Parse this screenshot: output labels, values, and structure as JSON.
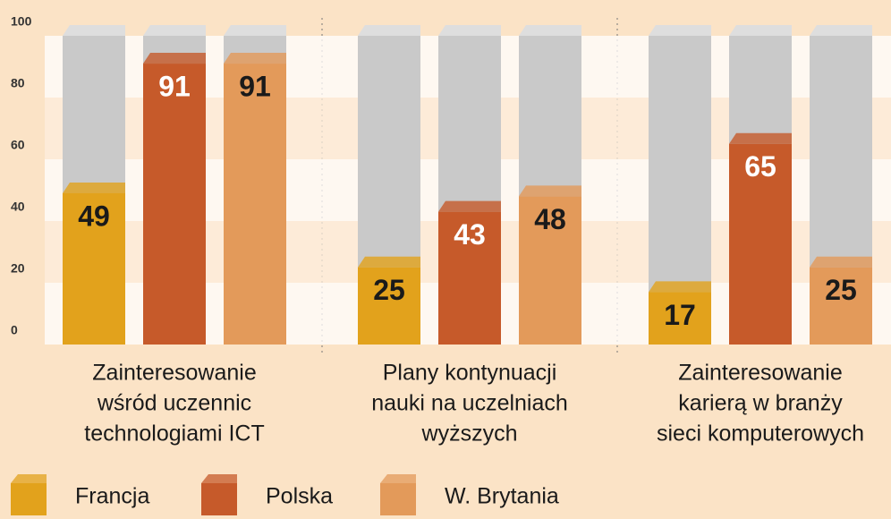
{
  "chart_data": {
    "type": "bar3d",
    "categories": [
      [
        "Zainteresowanie",
        "wśród uczennic",
        "technologiami ICT"
      ],
      [
        "Plany kontynuacji",
        "nauki na uczelniach",
        "wyższych"
      ],
      [
        "Zainteresowanie",
        "karierą w branży",
        "sieci komputerowych"
      ]
    ],
    "series": [
      {
        "name": "Francja",
        "color": "#e2a21c",
        "label_color": "#1a1a1a",
        "values": [
          49,
          25,
          17
        ]
      },
      {
        "name": "Polska",
        "color": "#c65a2a",
        "label_color": "#ffffff",
        "values": [
          91,
          43,
          65
        ]
      },
      {
        "name": "W. Brytania",
        "color": "#e39a5a",
        "label_color": "#1a1a1a",
        "values": [
          91,
          48,
          25
        ]
      }
    ],
    "ylim": [
      0,
      100
    ],
    "yticks": [
      0,
      20,
      40,
      60,
      80,
      100
    ],
    "grid": true,
    "legend": "bottom"
  }
}
